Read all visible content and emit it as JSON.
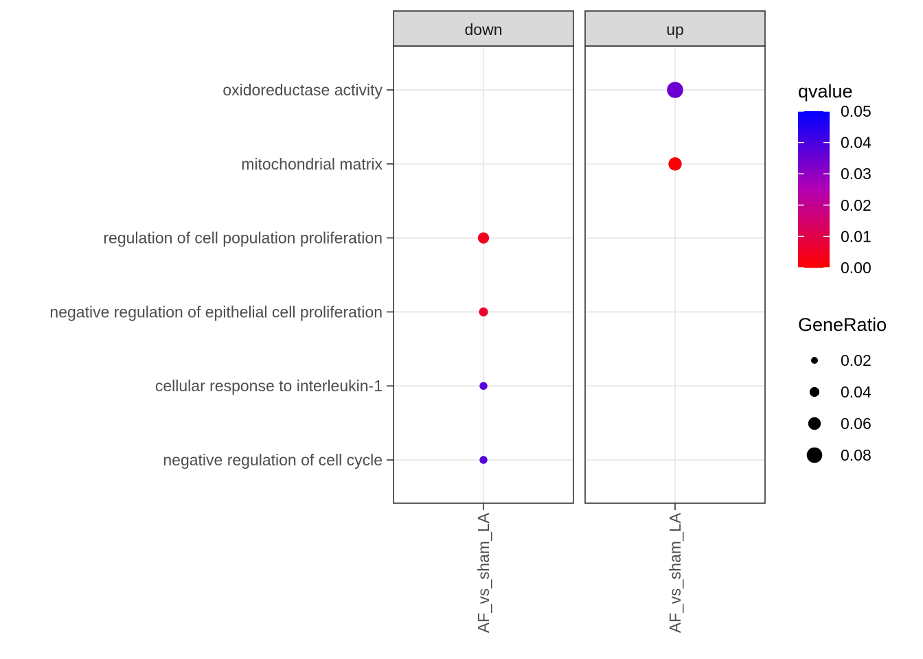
{
  "chart_data": {
    "type": "scatter",
    "facets": [
      "down",
      "up"
    ],
    "x_categories": [
      "AF_vs_sham_LA"
    ],
    "y_categories": [
      "oxidoreductase activity",
      "mitochondrial matrix",
      "regulation of cell population proliferation",
      "negative regulation of epithelial cell proliferation",
      "cellular response to interleukin-1",
      "negative regulation of cell cycle"
    ],
    "points": [
      {
        "facet": "up",
        "x": "AF_vs_sham_LA",
        "term": "oxidoreductase activity",
        "GeneRatio": 0.08,
        "qvalue": 0.035
      },
      {
        "facet": "up",
        "x": "AF_vs_sham_LA",
        "term": "mitochondrial matrix",
        "GeneRatio": 0.06,
        "qvalue": 0.001
      },
      {
        "facet": "down",
        "x": "AF_vs_sham_LA",
        "term": "regulation of cell population proliferation",
        "GeneRatio": 0.045,
        "qvalue": 0.004
      },
      {
        "facet": "down",
        "x": "AF_vs_sham_LA",
        "term": "negative regulation of epithelial cell proliferation",
        "GeneRatio": 0.03,
        "qvalue": 0.006
      },
      {
        "facet": "down",
        "x": "AF_vs_sham_LA",
        "term": "cellular response to interleukin-1",
        "GeneRatio": 0.022,
        "qvalue": 0.038
      },
      {
        "facet": "down",
        "x": "AF_vs_sham_LA",
        "term": "negative regulation of cell cycle",
        "GeneRatio": 0.022,
        "qvalue": 0.038
      }
    ],
    "color_legend": {
      "title": "qvalue",
      "ticks": [
        "0.05",
        "0.04",
        "0.03",
        "0.02",
        "0.01",
        "0.00"
      ],
      "range": [
        0,
        0.05
      ],
      "low_color": "#ff0000",
      "high_color": "#0000ff"
    },
    "size_legend": {
      "title": "GeneRatio",
      "values": [
        0.02,
        0.04,
        0.06,
        0.08
      ],
      "labels": [
        "0.02",
        "0.04",
        "0.06",
        "0.08"
      ]
    },
    "grid": true,
    "legend_position": "right"
  }
}
